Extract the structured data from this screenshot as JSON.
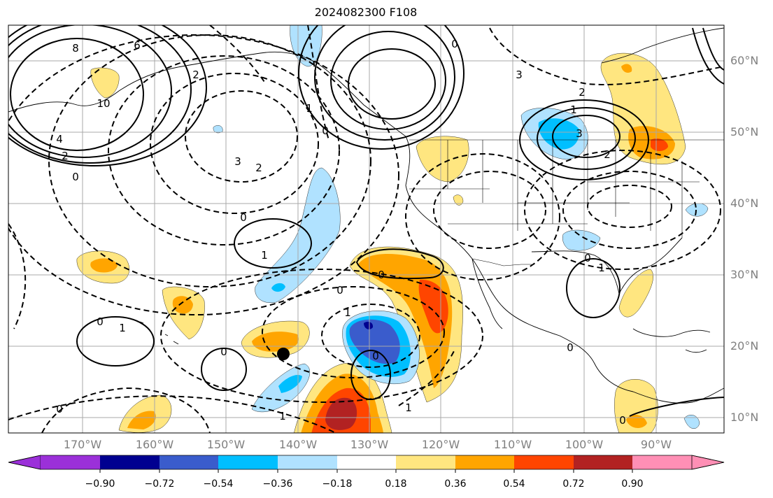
{
  "title": "2024082300 F108",
  "map": {
    "lat_labels": [
      "60°N",
      "50°N",
      "40°N",
      "30°N",
      "20°N",
      "10°N"
    ],
    "lon_labels": [
      "170°W",
      "160°W",
      "150°W",
      "140°W",
      "130°W",
      "120°W",
      "110°W",
      "100°W",
      "90°W"
    ],
    "contour_labels": [
      "8",
      "6",
      "10",
      "4",
      "2",
      "0",
      "1",
      "3",
      "0",
      "1",
      "0",
      "0",
      "1",
      "1",
      "0",
      "1",
      "0",
      "0",
      "1",
      "2",
      "3",
      "2",
      "0",
      "1",
      "0",
      "1",
      "0",
      "0",
      "3",
      "2",
      "0",
      "2",
      "0"
    ],
    "storm_marker": "tropical-cyclone-center"
  },
  "colorbar": {
    "labels": [
      "−0.90",
      "−0.72",
      "−0.54",
      "−0.36",
      "−0.18",
      "0.18",
      "0.36",
      "0.54",
      "0.72",
      "0.90"
    ],
    "colors": [
      "#9b30d9",
      "#000090",
      "#3a5ccc",
      "#00bfff",
      "#b0e2ff",
      "#ffffff",
      "#ffe680",
      "#ffa500",
      "#ff4500",
      "#b22222",
      "#ff8fb5"
    ]
  }
}
